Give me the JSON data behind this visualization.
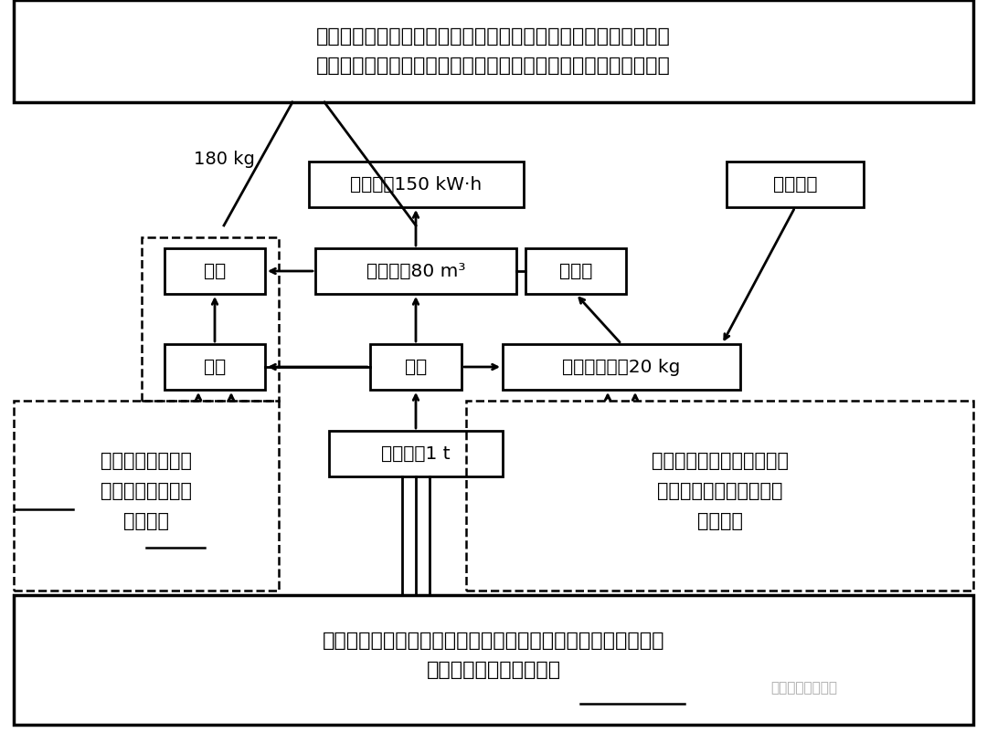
{
  "bg_color": "#ffffff",
  "top_text_line1": "既可通过厨余垃圾分拣后直接生产沼气，也可通过提取生物油脂后",
  "top_text_line2": "的有机渣来生产沼气；生产沼气既产生废渣，又可用沼气进行发电",
  "bottom_text_line1": "厨余垃圾是自动处理系统主要工艺流程的起点，是处理系统中最",
  "bottom_text_line2": "初阶段的输入物，为原料",
  "watermark": "谭老师地理工作室",
  "label_180kg": "180 kg",
  "node_labels": {
    "zhao_qi_fd": "沼气发电150 kW·h",
    "gong_ye": "工业油脂",
    "fei_zha": "废渣",
    "sheng_chan": "生产沼气80 m³",
    "you_ji_zha": "有机渣",
    "za_wu": "杂物",
    "fen_jian": "分拣",
    "ti_qu": "提取生物油脂20 kg",
    "chu_yu": "厨余垃圾1 t"
  },
  "left_annot_lines": [
    "通过垃圾分拣产生",
    "杂物，生产沼气后",
    "产生废渣"
  ],
  "left_annot_underline_words": [
    "杂物",
    "废渣"
  ],
  "right_annot_lines": [
    "通过分拣，提取生物油脂，",
    "生产工业油脂；有机渣可",
    "生产沼气"
  ]
}
